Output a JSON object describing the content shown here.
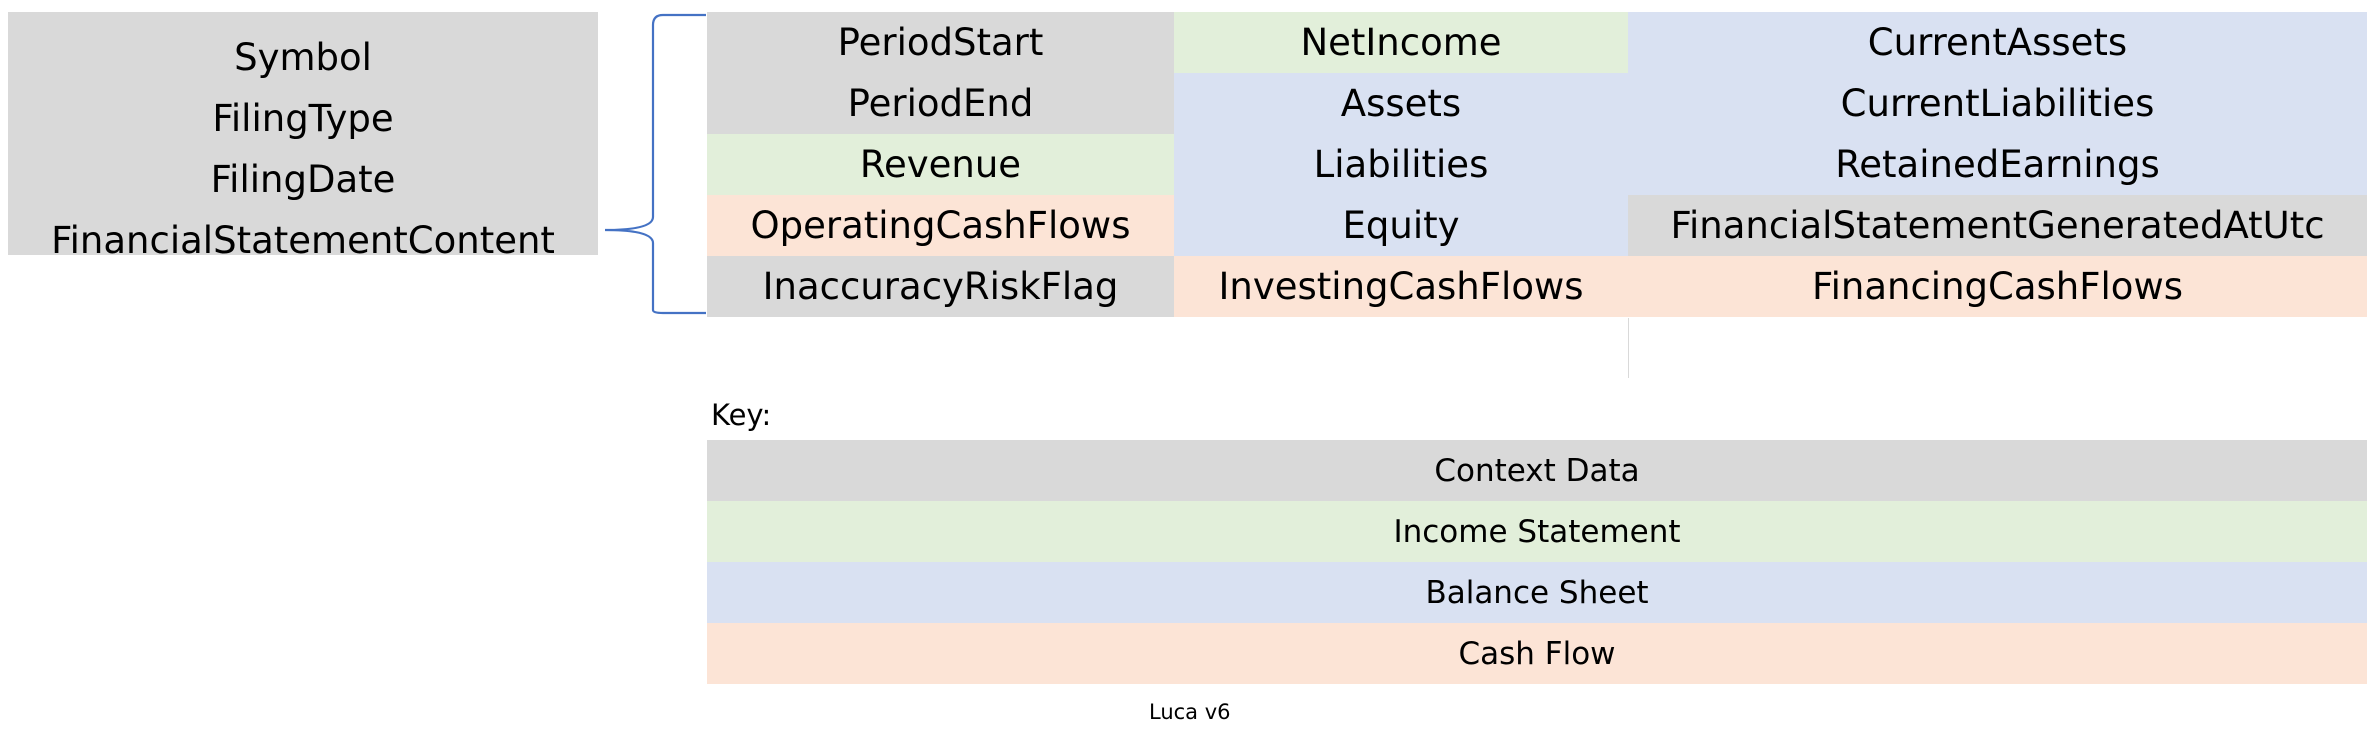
{
  "colors": {
    "context": "#d9d9d9",
    "income": "#e2efda",
    "balance": "#d9e1f2",
    "cash": "#fce4d6",
    "brace": "#4472c4"
  },
  "left_box": {
    "items": [
      "Symbol",
      "FilingType",
      "FilingDate",
      "FinancialStatementContent"
    ]
  },
  "fields": {
    "col1": [
      "PeriodStart",
      "PeriodEnd",
      "Revenue",
      "OperatingCashFlows",
      "InaccuracyRiskFlag"
    ],
    "col2": [
      "NetIncome",
      "Assets",
      "Liabilities",
      "Equity",
      "InvestingCashFlows"
    ],
    "col3": [
      "CurrentAssets",
      "CurrentLiabilities",
      "RetainedEarnings",
      "FinancialStatementGeneratedAtUtc",
      "FinancingCashFlows"
    ]
  },
  "key": {
    "label": "Key:",
    "items": [
      "Context Data",
      "Income Statement",
      "Balance Sheet",
      "Cash Flow"
    ]
  },
  "footer": "Luca v6"
}
